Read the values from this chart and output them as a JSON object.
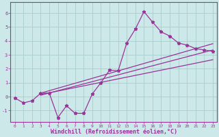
{
  "xlabel": "Windchill (Refroidissement éolien,°C)",
  "background_color": "#cce8e8",
  "grid_color": "#aacccc",
  "line_color": "#993399",
  "x_data": [
    0,
    1,
    2,
    3,
    4,
    5,
    6,
    7,
    8,
    9,
    10,
    11,
    12,
    13,
    14,
    15,
    16,
    17,
    18,
    19,
    20,
    21,
    22,
    23
  ],
  "y_scatter": [
    -0.1,
    -0.45,
    -0.3,
    0.25,
    0.25,
    -1.5,
    -0.65,
    -1.2,
    -1.2,
    0.2,
    1.0,
    1.9,
    1.85,
    3.85,
    4.85,
    6.1,
    5.35,
    4.65,
    4.35,
    3.85,
    3.7,
    3.45,
    3.35,
    3.25
  ],
  "line1_x": [
    3,
    23
  ],
  "line1_y": [
    0.25,
    3.8
  ],
  "line2_x": [
    3,
    23
  ],
  "line2_y": [
    0.1,
    3.35
  ],
  "line3_x": [
    3,
    23
  ],
  "line3_y": [
    0.15,
    2.65
  ],
  "xlim": [
    -0.5,
    23.5
  ],
  "ylim": [
    -1.8,
    6.8
  ],
  "yticks": [
    -1,
    0,
    1,
    2,
    3,
    4,
    5,
    6
  ],
  "xticks": [
    0,
    1,
    2,
    3,
    4,
    5,
    6,
    7,
    8,
    9,
    10,
    11,
    12,
    13,
    14,
    15,
    16,
    17,
    18,
    19,
    20,
    21,
    22,
    23
  ]
}
